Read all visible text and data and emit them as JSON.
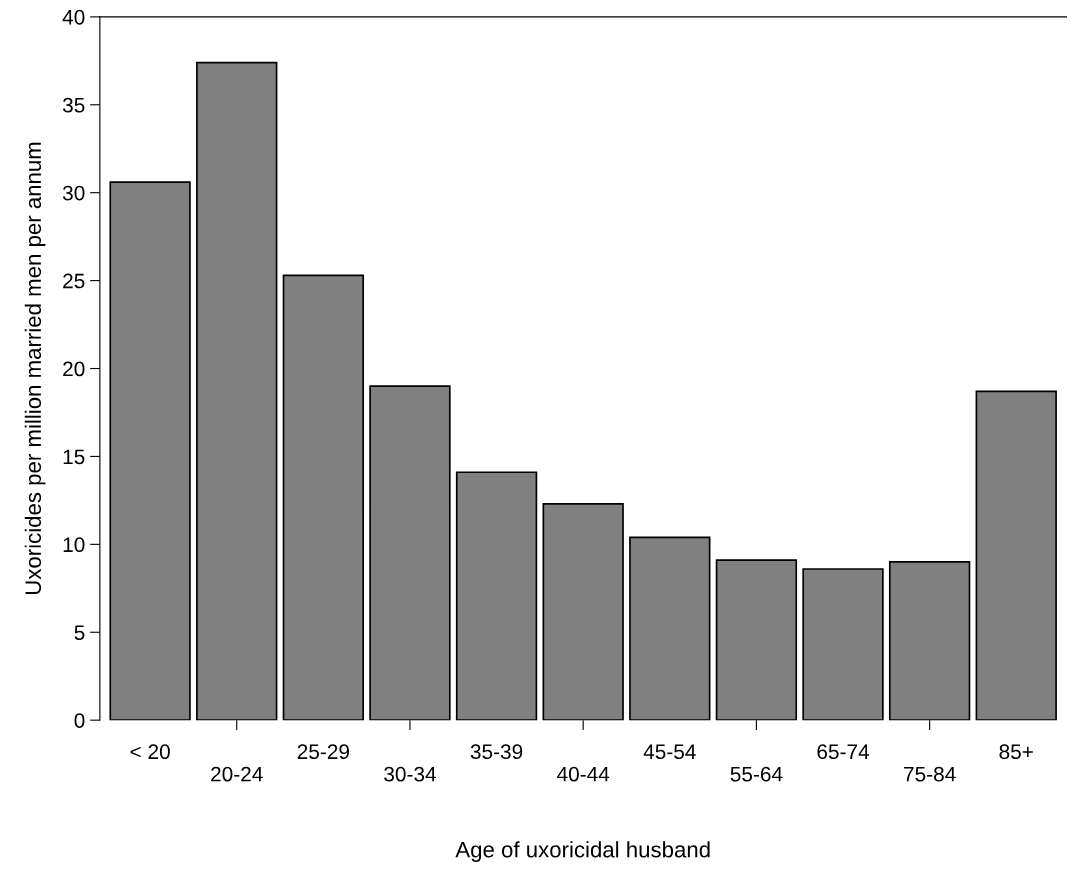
{
  "chart_data": {
    "type": "bar",
    "xlabel": "Age of uxoricidal husband",
    "ylabel": "Uxoricides per million married men per annum",
    "categories": [
      "< 20",
      "20-24",
      "25-29",
      "30-34",
      "35-39",
      "40-44",
      "45-54",
      "55-64",
      "65-74",
      "75-84",
      "85+"
    ],
    "values": [
      30.6,
      37.4,
      25.3,
      19.0,
      14.1,
      12.3,
      10.4,
      9.1,
      8.6,
      9.0,
      18.7
    ],
    "color": "#808080",
    "ylim": [
      0,
      40
    ],
    "yticks": [
      0,
      5,
      10,
      15,
      20,
      25,
      30,
      35,
      40
    ],
    "grid": false,
    "legend": false
  }
}
